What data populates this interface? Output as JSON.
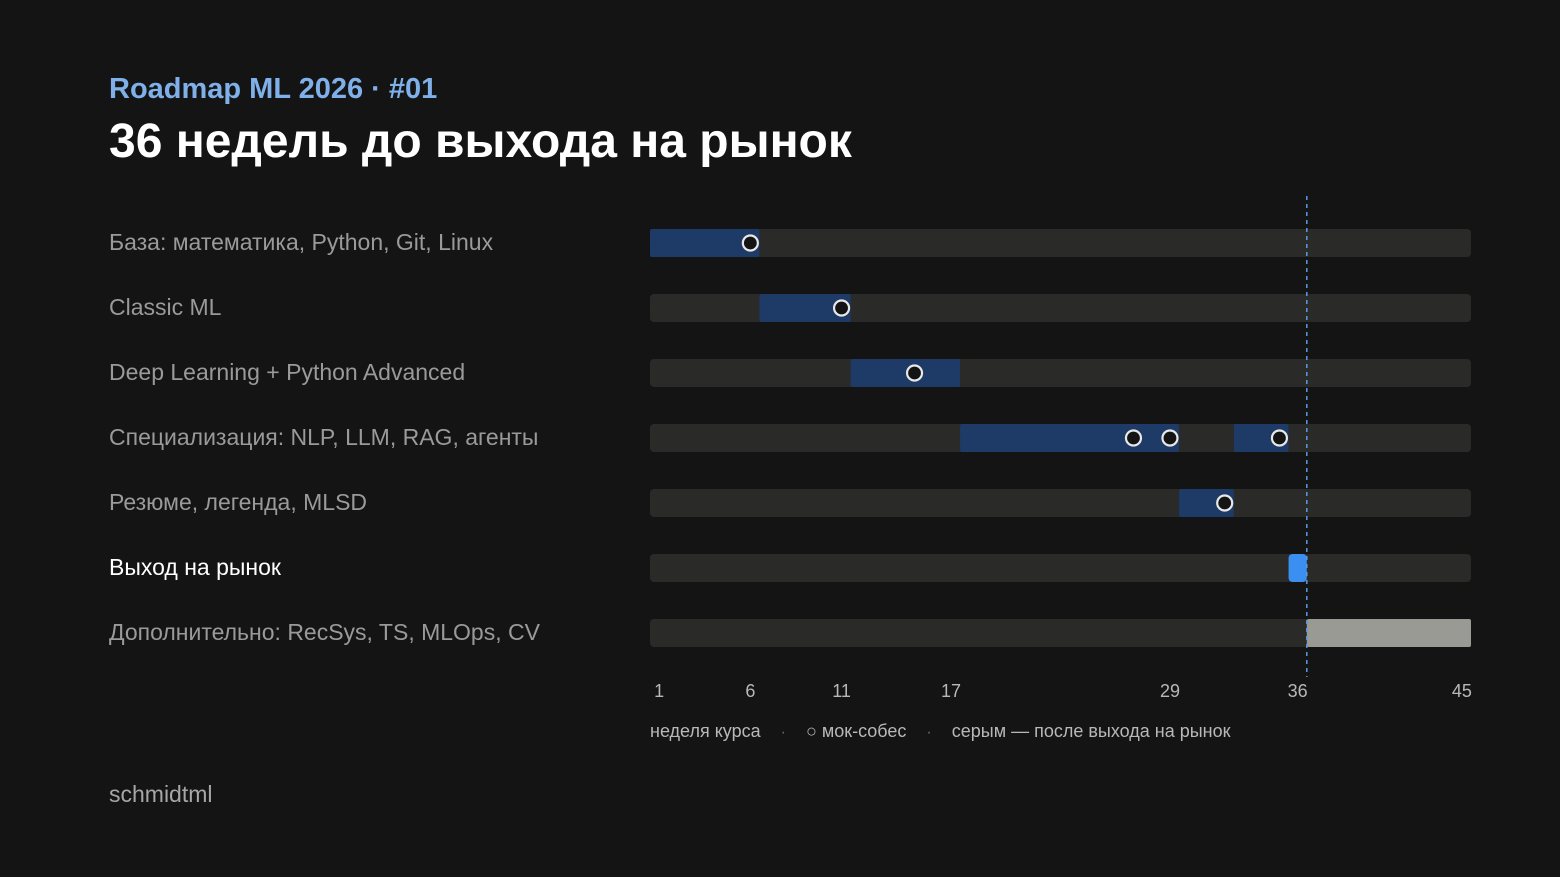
{
  "header": {
    "kicker": "Roadmap ML 2026 · #01",
    "title": "36 недель до выхода на рынок"
  },
  "footer": {
    "author": "schmidtml"
  },
  "colors": {
    "background": "#141414",
    "track": "#2a2a28",
    "phase": "#1e3a66",
    "market": "#3b8ff0",
    "extra": "#9a9a94",
    "accent": "#7fb0ea",
    "label_muted": "#9a9a9a",
    "label_active": "#ffffff",
    "axis_text": "#b8b8b8",
    "marker_fill": "#141414",
    "marker_stroke": "#e8e8e8",
    "deadline_line": "#5a9ae0"
  },
  "chart_data": {
    "type": "gantt",
    "xlabel": "неделя курса",
    "x_ticks": [
      1,
      6,
      11,
      17,
      29,
      36,
      45
    ],
    "xlim": [
      1,
      46
    ],
    "deadline_week": 37,
    "rows": [
      {
        "label": "База: математика, Python, Git, Linux",
        "segments": [
          {
            "start": 1,
            "end": 7,
            "kind": "phase"
          }
        ],
        "mock_interviews": [
          6.5
        ],
        "highlight": false
      },
      {
        "label": "Classic ML",
        "segments": [
          {
            "start": 7,
            "end": 12,
            "kind": "phase"
          }
        ],
        "mock_interviews": [
          11.5
        ],
        "highlight": false
      },
      {
        "label": "Deep Learning + Python Advanced",
        "segments": [
          {
            "start": 12,
            "end": 18,
            "kind": "phase"
          }
        ],
        "mock_interviews": [
          15.5
        ],
        "highlight": false
      },
      {
        "label": "Специализация: NLP, LLM, RAG, агенты",
        "segments": [
          {
            "start": 18,
            "end": 30,
            "kind": "phase"
          },
          {
            "start": 33,
            "end": 36,
            "kind": "phase"
          }
        ],
        "mock_interviews": [
          27.5,
          29.5,
          35.5
        ],
        "highlight": false
      },
      {
        "label": "Резюме, легенда, MLSD",
        "segments": [
          {
            "start": 30,
            "end": 33,
            "kind": "phase"
          }
        ],
        "mock_interviews": [
          32.5
        ],
        "highlight": false
      },
      {
        "label": "Выход на рынок",
        "segments": [
          {
            "start": 36,
            "end": 37,
            "kind": "market"
          }
        ],
        "mock_interviews": [],
        "highlight": true
      },
      {
        "label": "Дополнительно: RecSys, TS, MLOps, CV",
        "segments": [
          {
            "start": 37,
            "end": 46,
            "kind": "extra"
          }
        ],
        "mock_interviews": [],
        "highlight": false
      }
    ],
    "legend": [
      {
        "text": "неделя курса"
      },
      {
        "text": "·"
      },
      {
        "text": "○ мок-собес"
      },
      {
        "text": "·"
      },
      {
        "text": "серым — после выхода на рынок"
      }
    ]
  }
}
